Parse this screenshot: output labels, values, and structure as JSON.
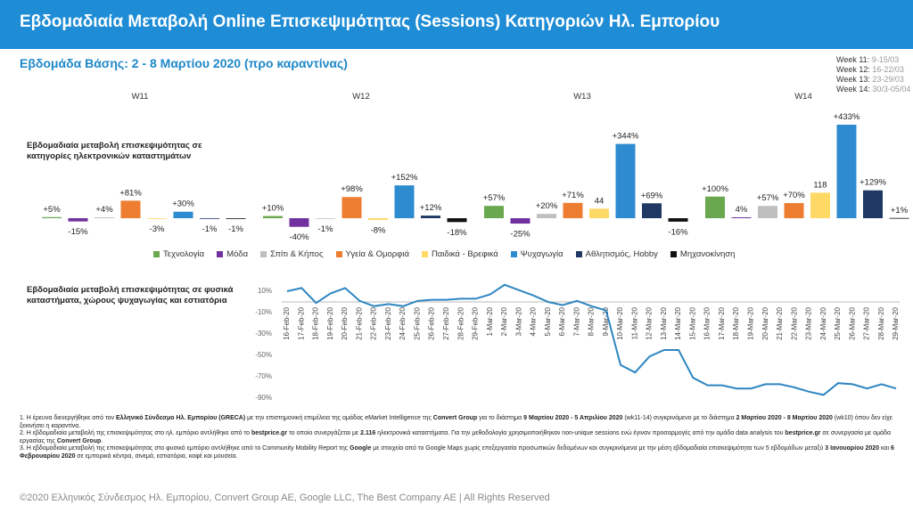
{
  "header": {
    "title": "Εβδομαδιαία Μεταβολή Online Επισκεψιμότητας (Sessions) Κατηγοριών Ηλ. Εμπορίου",
    "subtitle": "Εβδομάδα Βάσης: 2 - 8 Μαρτίου 2020 (προ καραντίνας)"
  },
  "weeks": [
    [
      "Week 11:",
      "9-15/03"
    ],
    [
      "Week 12:",
      "16-22/03"
    ],
    [
      "Week 13:",
      "23-29/03"
    ],
    [
      "Week 14:",
      "30/3-05/04"
    ]
  ],
  "chart_data": [
    {
      "type": "bar",
      "title": "Εβδομαδιαία μεταβολή επισκεψιμότητας σε κατηγορίες ηλεκτρονικών καταστημάτων",
      "categories": [
        "W11",
        "W12",
        "W13",
        "W14"
      ],
      "series": [
        {
          "name": "Τεχνολογία",
          "color": "#6aa84f",
          "values": [
            5,
            10,
            57,
            100
          ],
          "value_labels": [
            "+5%",
            "+10%",
            "+57%",
            "+100%"
          ]
        },
        {
          "name": "Μόδα",
          "color": "#7030a0",
          "values": [
            -15,
            -40,
            -25,
            4
          ],
          "value_labels": [
            "-15%",
            "-40%",
            "-25%",
            "4%"
          ]
        },
        {
          "name": "Σπίτι & Κήπος",
          "color": "#bfbfbf",
          "values": [
            4,
            -1,
            20,
            57
          ],
          "value_labels": [
            "+4%",
            "-1%",
            "+20%",
            "+57%"
          ]
        },
        {
          "name": "Υγεία & Ομορφιά",
          "color": "#ed7d31",
          "values": [
            81,
            98,
            71,
            70
          ],
          "value_labels": [
            "+81%",
            "+98%",
            "+71%",
            "+70%"
          ]
        },
        {
          "name": "Παιδικά - Βρεφικά",
          "color": "#ffd966",
          "values": [
            -3,
            -8,
            44,
            118
          ],
          "value_labels": [
            "-3%",
            "-8%",
            "44",
            "118"
          ]
        },
        {
          "name": "Ψυχαγωγία",
          "color": "#2e8bd0",
          "values": [
            30,
            152,
            344,
            433
          ],
          "value_labels": [
            "+30%",
            "+152%",
            "+344%",
            "+433%"
          ]
        },
        {
          "name": "Αθλητισμός, Hobby",
          "color": "#1f3864",
          "values": [
            -1,
            12,
            69,
            129
          ],
          "value_labels": [
            "-1%",
            "+12%",
            "+69%",
            "+129%"
          ]
        },
        {
          "name": "Μηχανοκίνηση",
          "color": "#111111",
          "values": [
            -1,
            -18,
            -16,
            1
          ],
          "value_labels": [
            "-1%",
            "-18%",
            "-16%",
            "+1%"
          ]
        }
      ]
    },
    {
      "type": "line",
      "title": "Εβδομαδιαία μεταβολή επισκεψιμότητας σε φυσικά καταστήματα, χώρους ψυχαγωγίας και εστιατόρια",
      "color": "#2e86c1",
      "x": [
        "16-Feb-20",
        "17-Feb-20",
        "18-Feb-20",
        "19-Feb-20",
        "20-Feb-20",
        "21-Feb-20",
        "22-Feb-20",
        "23-Feb-20",
        "24-Feb-20",
        "25-Feb-20",
        "26-Feb-20",
        "27-Feb-20",
        "28-Feb-20",
        "29-Feb-20",
        "1-Mar-20",
        "2-Mar-20",
        "3-Mar-20",
        "4-Mar-20",
        "5-Mar-20",
        "6-Mar-20",
        "7-Mar-20",
        "8-Mar-20",
        "9-Mar-20",
        "10-Mar-20",
        "11-Mar-20",
        "12-Mar-20",
        "13-Mar-20",
        "14-Mar-20",
        "15-Mar-20",
        "16-Mar-20",
        "17-Mar-20",
        "18-Mar-20",
        "19-Mar-20",
        "20-Mar-20",
        "21-Mar-20",
        "22-Mar-20",
        "23-Mar-20",
        "24-Mar-20",
        "25-Mar-20",
        "26-Mar-20",
        "27-Mar-20",
        "28-Mar-20",
        "29-Mar-20"
      ],
      "values": [
        10,
        13,
        -1,
        8,
        13,
        1,
        -4,
        -2,
        -4,
        1,
        2,
        2,
        3,
        3,
        7,
        16,
        11,
        6,
        0,
        -3,
        1,
        -4,
        -8,
        -59,
        -66,
        -51,
        -45,
        -45,
        -71,
        -78,
        -78,
        -81,
        -81,
        -77,
        -77,
        -80,
        -84,
        -87,
        -76,
        -77,
        -81,
        -77,
        -81
      ],
      "ylim": [
        -95,
        15
      ],
      "yticks": [
        {
          "value": 10,
          "label": "10%"
        },
        {
          "value": -10,
          "label": "-10%"
        },
        {
          "value": -30,
          "label": "-30%"
        },
        {
          "value": -50,
          "label": "-50%"
        },
        {
          "value": -70,
          "label": "-70%"
        },
        {
          "value": -90,
          "label": "-90%"
        }
      ]
    }
  ],
  "notes": [
    [
      "1. Η έρευνα διενεργήθηκε από τον ",
      "Ελληνικό Σύνδεσμο Ηλ. Εμπορίου (GRECA)",
      " με την επιστημονική επιμέλεια της ομάδας eMarket Intelligence της ",
      "Convert Group",
      " για το διάστημα ",
      "9 Μαρτίου 2020 - 5 Απριλίου 2020",
      " (wk11-14) συγκρινόμενο με το διάστημα ",
      "2 Μαρτίου 2020 - 8 Μαρτίου 2020",
      " (wk10) όπου δεν είχε ξεκινήσει η καραντίνα."
    ],
    [
      "2. Η εβδομαδιαία μεταβολή της επισκεψιμότητας στο ηλ. εμπόριο αντλήθηκε από το ",
      "bestprice.gr",
      " το οποίο συνεργάζεται με ",
      "2.116",
      " ηλεκτρονικά καταστήματα. Για την μεθοδολογία χρησιμοποιήθηκαν non-unique sessions ενώ έγιναν προσαρμογές από την ομάδα data analysis του ",
      "bestprice.gr",
      " σε συνεργασία με ομάδα εργασίας της ",
      "Convert Group",
      "."
    ],
    [
      "3. Η εβδομαδιαία μεταβολή της επισκεψιμότητας στο φυσικό εμπόριο αντλήθηκε από το Community Mobility Report της ",
      "Google",
      " με στοιχεία από το Google Maps χωρίς επεξεργασία προσωπικών δεδομένων και συγκρινόμενα με την μέση εβδομαδιαία επισκεψιμότητα των 5 εβδομάδων μεταξύ ",
      "3 Ιανουαρίου 2020",
      " και ",
      "6 Φεβρουαρίου 2020",
      " σε εμπορικά κέντρα, σινεμά, εστιατόρια, καφέ και μουσεία."
    ]
  ],
  "footer": "©2020 Ελληνικός Σύνδεσμος Ηλ. Εμπορίου, Convert Group AE, Google LLC, The Best Company AE | All Rights Reserved"
}
